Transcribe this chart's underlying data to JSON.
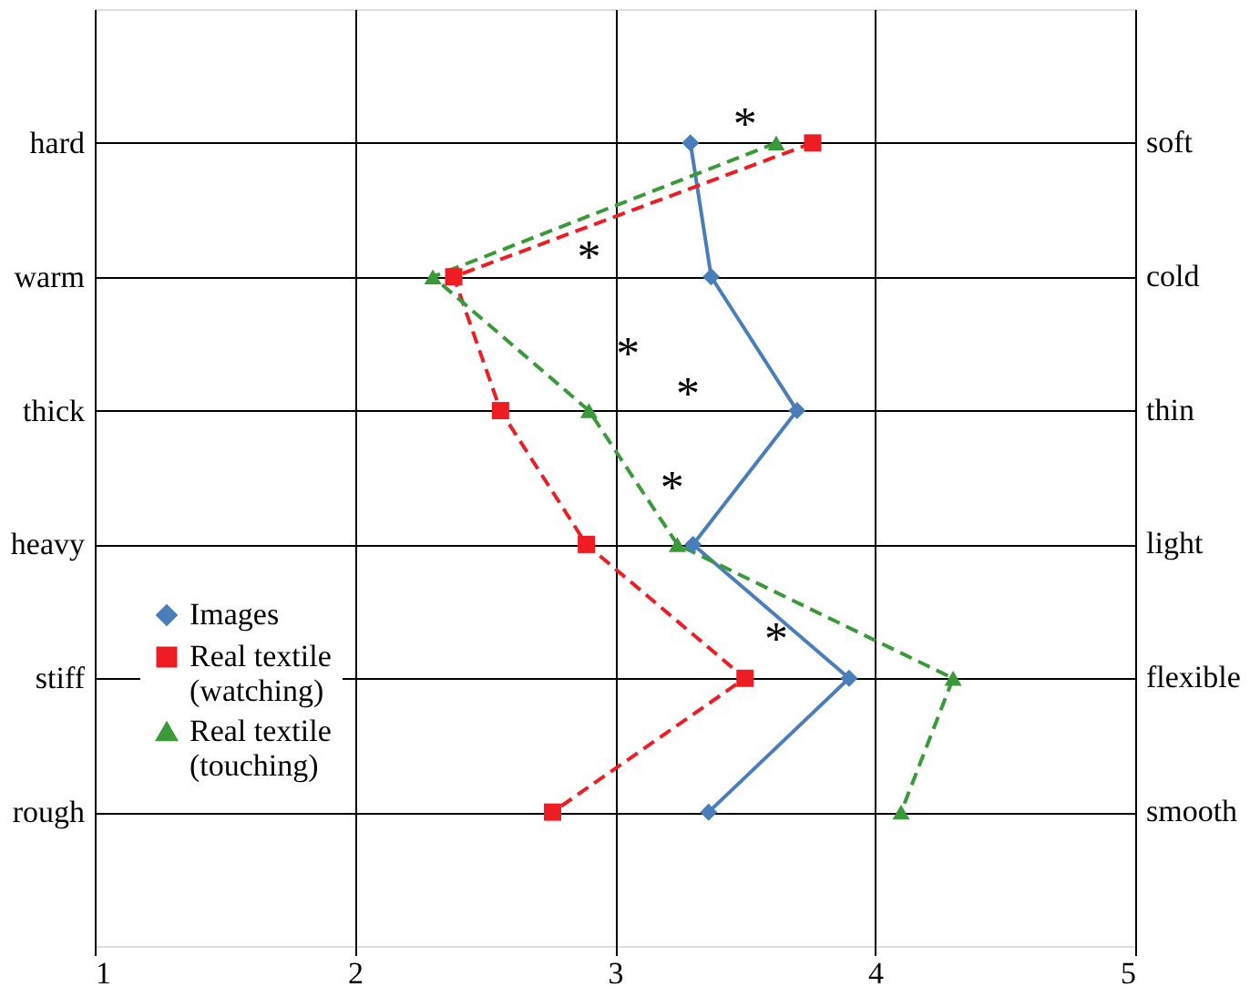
{
  "chart_data": {
    "type": "line",
    "categories": [
      "hard",
      "warm",
      "thick",
      "heavy",
      "stiff",
      "rough"
    ],
    "y2_categories": [
      "soft",
      "cold",
      "thin",
      "light",
      "flexible",
      "smooth"
    ],
    "orientation": "horizontal",
    "xlim": [
      1,
      5
    ],
    "xticks": [
      1,
      2,
      3,
      4,
      5
    ],
    "grid": true,
    "legend": "left",
    "series": [
      {
        "name": "Images",
        "color": "#4a7ebb",
        "marker": "diamond",
        "line_style": "solid",
        "values": [
          3.29,
          3.37,
          3.7,
          3.3,
          3.9,
          3.36
        ]
      },
      {
        "name": "Real textile (watching)",
        "color": "#ee1d23",
        "marker": "square",
        "line_style": "dashed",
        "values": [
          3.76,
          2.38,
          2.56,
          2.89,
          3.5,
          2.76
        ]
      },
      {
        "name": "Real textile (touching)",
        "color": "#3a9a3a",
        "marker": "triangle",
        "line_style": "dashed",
        "values": [
          3.62,
          2.3,
          2.9,
          3.24,
          4.3,
          4.1
        ]
      }
    ],
    "annotations": [
      "*",
      "*",
      "*",
      "*",
      "*",
      "*"
    ]
  }
}
